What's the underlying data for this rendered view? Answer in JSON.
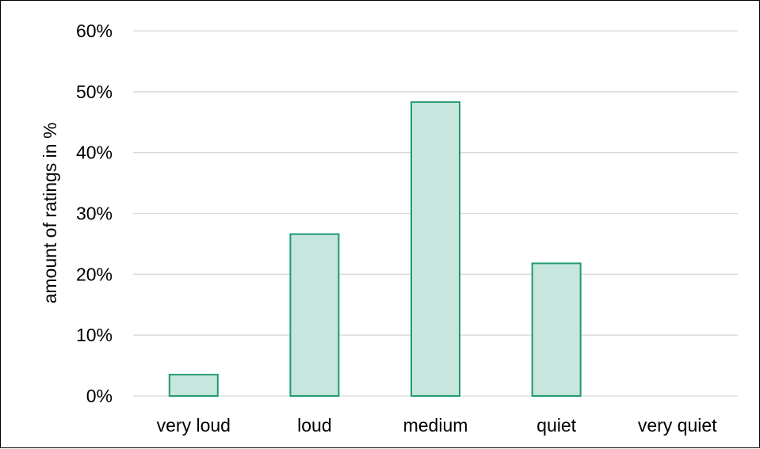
{
  "chart_data": {
    "type": "bar",
    "ylabel": "amount of ratings in %",
    "xlabel": "",
    "categories": [
      "very loud",
      "loud",
      "medium",
      "quiet",
      "very quiet"
    ],
    "values": [
      3.5,
      26.6,
      48.3,
      21.8,
      0
    ],
    "ylim": [
      0,
      60
    ],
    "yticks": [
      0,
      10,
      20,
      30,
      40,
      50,
      60
    ],
    "ytick_labels": [
      "0%",
      "10%",
      "20%",
      "30%",
      "40%",
      "50%",
      "60%"
    ],
    "grid": true,
    "legend": "none",
    "colors": {
      "bar_fill": "#c6e6de",
      "bar_stroke": "#1f9a74",
      "grid": "#d9d9d9",
      "text": "#000000",
      "border": "#000000"
    }
  }
}
